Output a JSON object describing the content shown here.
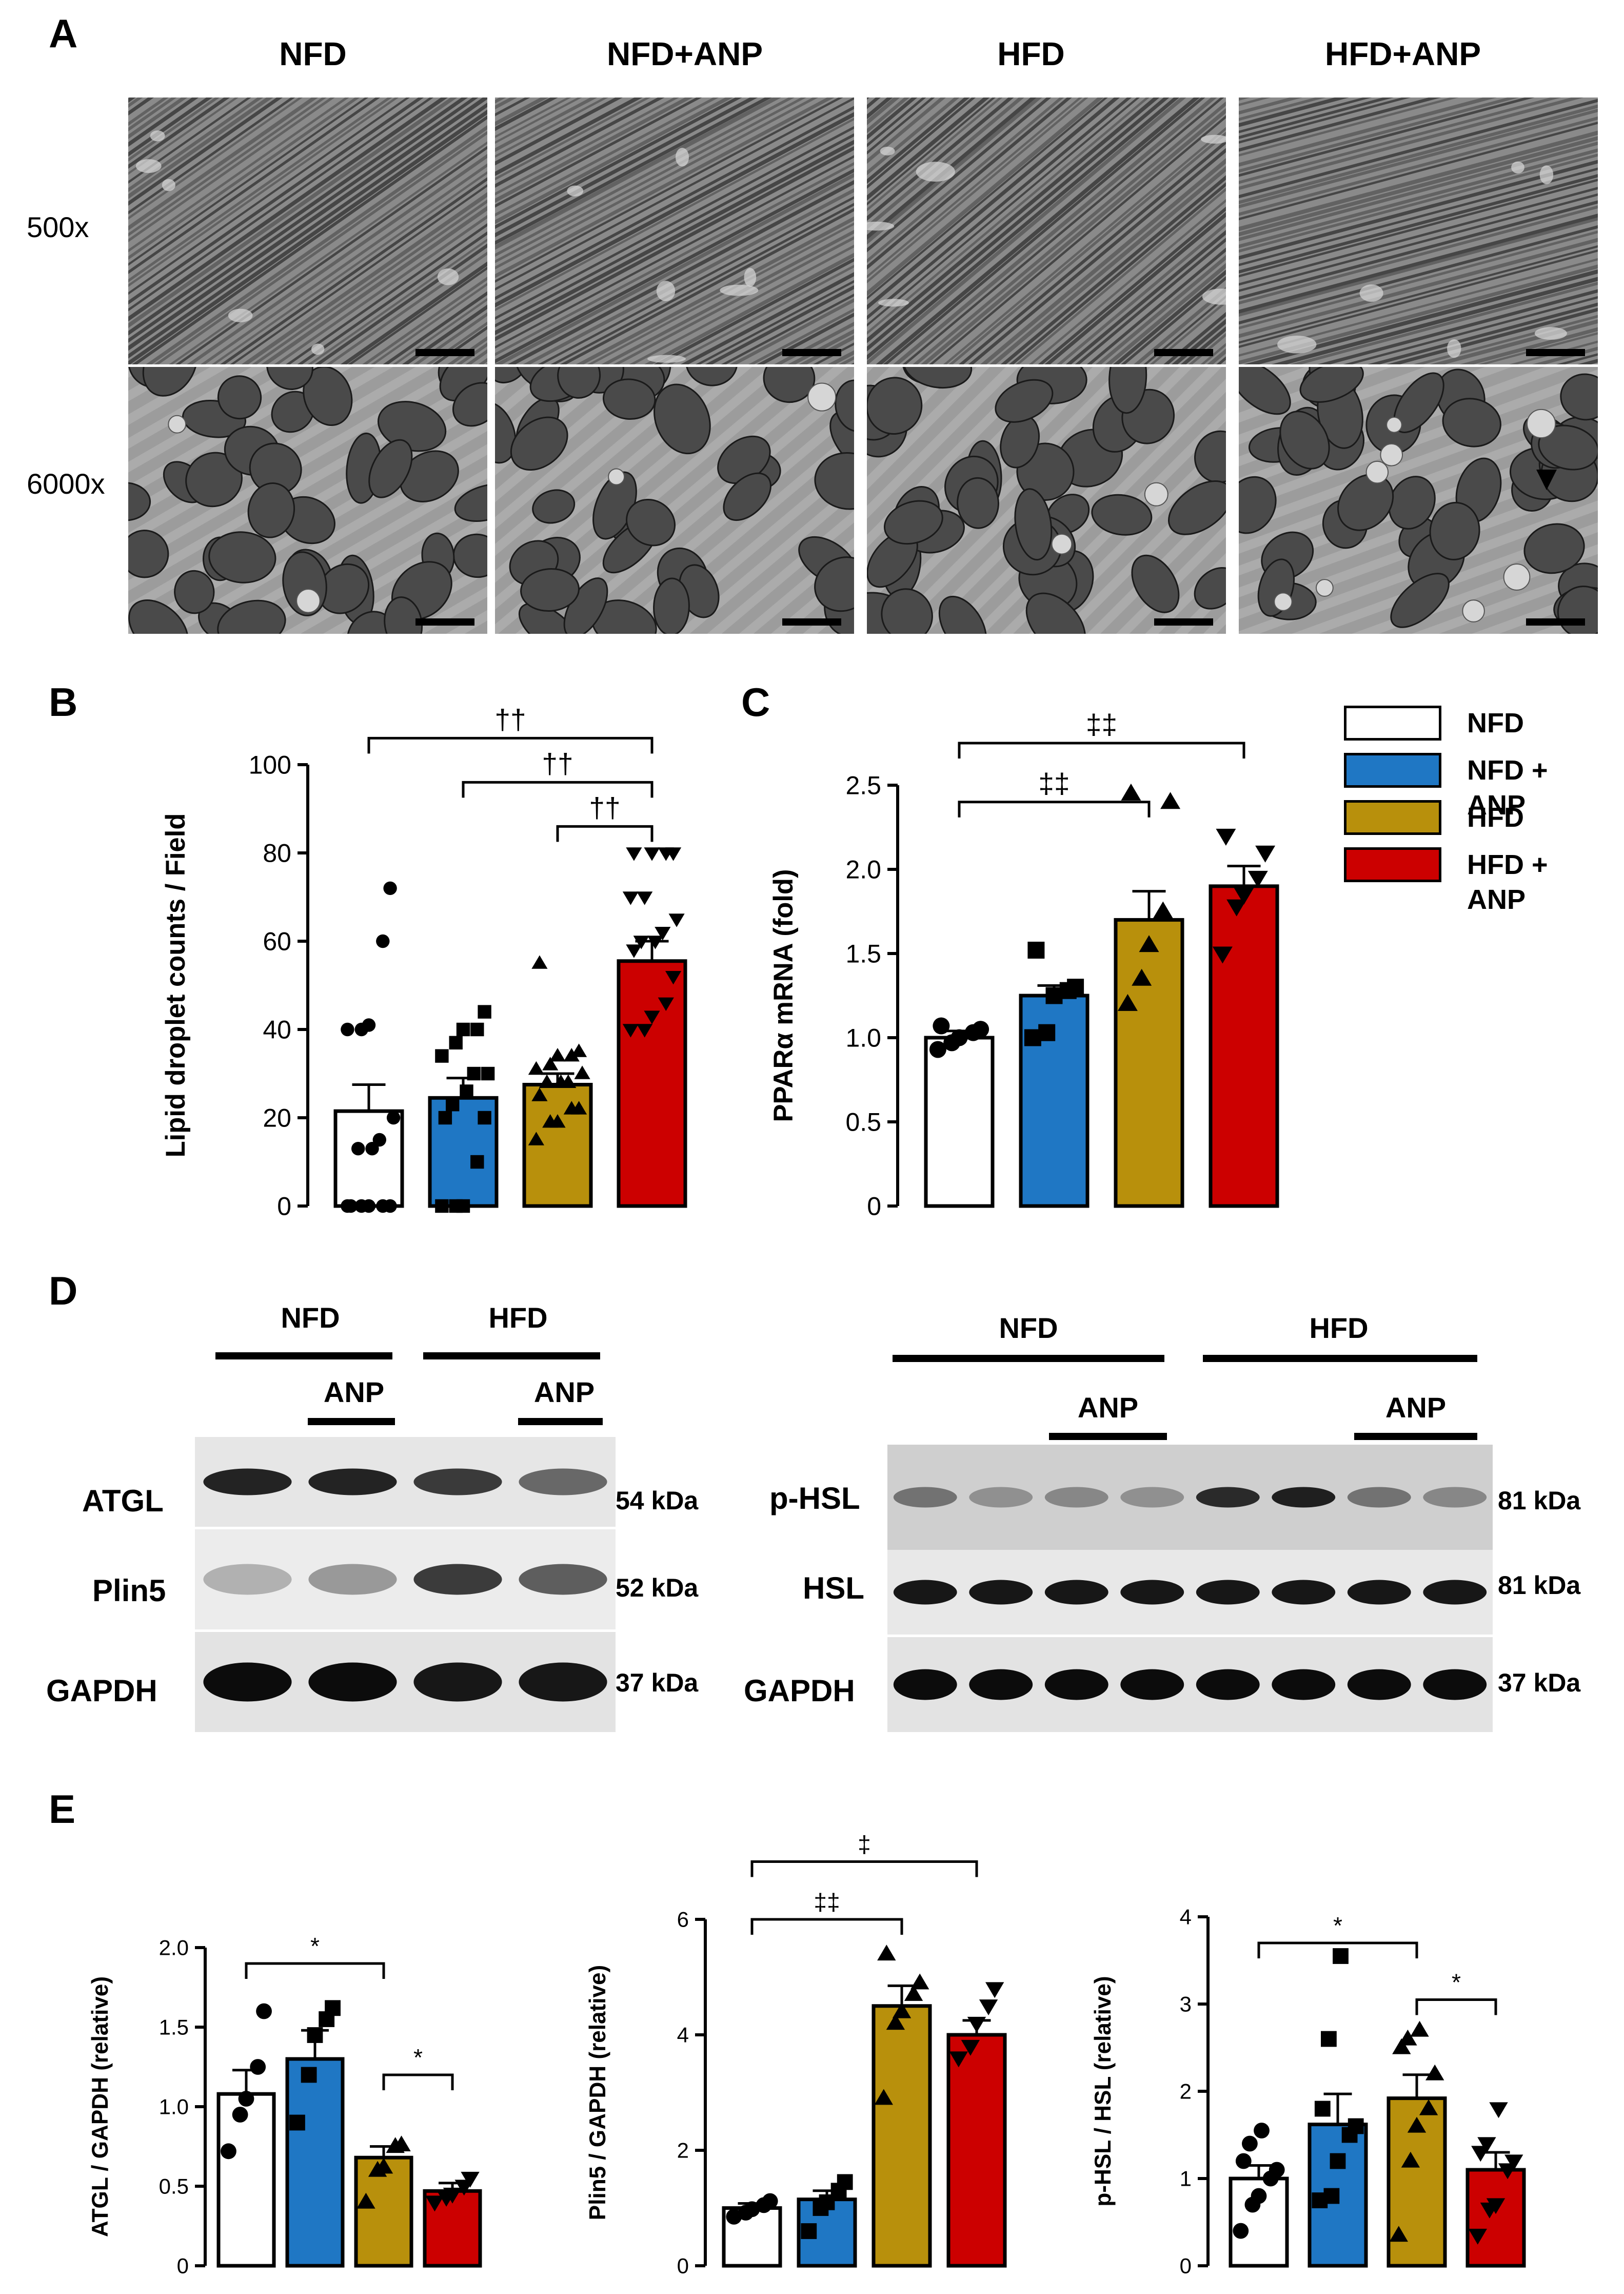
{
  "panelA": {
    "label": "A",
    "columns": [
      "NFD",
      "NFD+ANP",
      "HFD",
      "HFD+ANP"
    ],
    "rows": [
      "500x",
      "6000x"
    ]
  },
  "legend": {
    "items": [
      {
        "name": "NFD",
        "color": "#ffffff"
      },
      {
        "name": "NFD + ANP",
        "color": "#1f77c4"
      },
      {
        "name": "HFD",
        "color": "#b8900c"
      },
      {
        "name": "HFD + ANP",
        "color": "#cc0000"
      }
    ]
  },
  "panelD": {
    "label": "D",
    "left": {
      "groups": [
        "NFD",
        "HFD"
      ],
      "treatment": [
        "ANP",
        "ANP"
      ],
      "bands": [
        {
          "name": "ATGL",
          "kda": "54 kDa"
        },
        {
          "name": "Plin5",
          "kda": "52 kDa"
        },
        {
          "name": "GAPDH",
          "kda": "37 kDa"
        }
      ]
    },
    "right": {
      "groups": [
        "NFD",
        "HFD"
      ],
      "treatment": [
        "ANP",
        "ANP"
      ],
      "bands": [
        {
          "name": "p-HSL",
          "kda": "81 kDa"
        },
        {
          "name": "HSL",
          "kda": "81 kDa"
        },
        {
          "name": "GAPDH",
          "kda": "37 kDa"
        }
      ]
    }
  },
  "panelE": {
    "label": "E"
  },
  "chart_data": [
    {
      "id": "B",
      "label": "B",
      "type": "bar",
      "categories": [
        "NFD",
        "NFD + ANP",
        "HFD",
        "HFD + ANP"
      ],
      "values": [
        21.5,
        24.5,
        27.5,
        55.5
      ],
      "errors": [
        6,
        4.5,
        2.5,
        4.5
      ],
      "ylabel": "Lipid droplet counts / Field",
      "ylim": [
        0,
        100
      ],
      "yticks": [
        0,
        20,
        40,
        60,
        80,
        100
      ],
      "points": [
        [
          0,
          0,
          0,
          0,
          0,
          0,
          13,
          13,
          15,
          20,
          40,
          40,
          41,
          60,
          72
        ],
        [
          0,
          0,
          0,
          10,
          20,
          20,
          23,
          26,
          30,
          30,
          34,
          37,
          40,
          40,
          44
        ],
        [
          15,
          19,
          19,
          22,
          22,
          25,
          28,
          28,
          28,
          30,
          31,
          32,
          34,
          34,
          35,
          55
        ],
        [
          40,
          40,
          43,
          46,
          52,
          58,
          60,
          60,
          62,
          65,
          70,
          70,
          80,
          80,
          80,
          80
        ]
      ],
      "markers": [
        "circle",
        "square",
        "triangle-up",
        "triangle-down"
      ],
      "brackets": [
        {
          "from": 0,
          "to": 3,
          "y": 106,
          "text": "††"
        },
        {
          "from": 1,
          "to": 3,
          "y": 96,
          "text": "††"
        },
        {
          "from": 2,
          "to": 3,
          "y": 86,
          "text": "††"
        }
      ]
    },
    {
      "id": "C",
      "label": "C",
      "type": "bar",
      "categories": [
        "NFD",
        "NFD + ANP",
        "HFD",
        "HFD + ANP"
      ],
      "values": [
        1.0,
        1.25,
        1.7,
        1.9
      ],
      "errors": [
        0.04,
        0.06,
        0.17,
        0.12
      ],
      "ylabel": "PPARα mRNA (fold)",
      "ylim": [
        0,
        2.5
      ],
      "yticks": [
        0,
        0.5,
        1.0,
        1.5,
        2.0,
        2.5
      ],
      "yticklabels": [
        "0",
        "0.5",
        "1.0",
        "1.5",
        "2.0",
        "2.5"
      ],
      "points": [
        [
          0.93,
          0.97,
          1.0,
          1.03,
          1.05,
          1.07
        ],
        [
          1.0,
          1.03,
          1.25,
          1.28,
          1.3,
          1.52
        ],
        [
          1.2,
          1.35,
          1.55,
          1.75,
          2.4,
          2.45
        ],
        [
          1.5,
          1.78,
          1.85,
          1.95,
          2.1,
          2.2
        ]
      ],
      "markers": [
        "circle",
        "square",
        "triangle-up",
        "triangle-down"
      ],
      "brackets": [
        {
          "from": 0,
          "to": 2,
          "y": 2.4,
          "text": "‡‡"
        },
        {
          "from": 0,
          "to": 3,
          "y": 2.75,
          "text": "‡‡"
        }
      ]
    },
    {
      "id": "E1",
      "type": "bar",
      "categories": [
        "NFD",
        "NFD + ANP",
        "HFD",
        "HFD + ANP"
      ],
      "values": [
        1.08,
        1.3,
        0.68,
        0.47
      ],
      "errors": [
        0.15,
        0.18,
        0.07,
        0.05
      ],
      "ylabel": "ATGL / GAPDH (relative)",
      "ylim": [
        0,
        2.0
      ],
      "yticks": [
        0,
        0.5,
        1.0,
        1.5,
        2.0
      ],
      "yticklabels": [
        "0",
        "0.5",
        "1.0",
        "1.5",
        "2.0"
      ],
      "points": [
        [
          0.72,
          0.95,
          1.05,
          1.25,
          1.6
        ],
        [
          0.9,
          1.2,
          1.45,
          1.55,
          1.62
        ],
        [
          0.4,
          0.6,
          0.62,
          0.75,
          0.76
        ],
        [
          0.4,
          0.43,
          0.45,
          0.5,
          0.55
        ]
      ],
      "markers": [
        "circle",
        "square",
        "triangle-up",
        "triangle-down"
      ],
      "brackets": [
        {
          "from": 0,
          "to": 2,
          "y": 1.9,
          "text": "*"
        },
        {
          "from": 2,
          "to": 3,
          "y": 1.2,
          "text": "*"
        }
      ]
    },
    {
      "id": "E2",
      "type": "bar",
      "categories": [
        "NFD",
        "NFD + ANP",
        "HFD",
        "HFD + ANP"
      ],
      "values": [
        1.0,
        1.15,
        4.5,
        4.0
      ],
      "errors": [
        0.08,
        0.15,
        0.35,
        0.25
      ],
      "ylabel": "Plin5 / GAPDH (relative)",
      "ylim": [
        0,
        6
      ],
      "yticks": [
        0,
        2,
        4,
        6
      ],
      "points": [
        [
          0.85,
          0.92,
          0.98,
          1.05,
          1.12
        ],
        [
          0.6,
          1.0,
          1.1,
          1.3,
          1.45
        ],
        [
          2.9,
          4.2,
          4.4,
          4.7,
          4.9,
          5.4
        ],
        [
          3.6,
          3.8,
          4.2,
          4.5,
          4.8
        ]
      ],
      "markers": [
        "circle",
        "square",
        "triangle-up",
        "triangle-down"
      ],
      "brackets": [
        {
          "from": 0,
          "to": 2,
          "y": 6.0,
          "text": "‡‡"
        },
        {
          "from": 0,
          "to": 3,
          "y": 7.0,
          "text": "‡"
        }
      ]
    },
    {
      "id": "E3",
      "type": "bar",
      "categories": [
        "NFD",
        "NFD + ANP",
        "HFD",
        "HFD + ANP"
      ],
      "values": [
        1.0,
        1.62,
        1.92,
        1.1
      ],
      "errors": [
        0.15,
        0.35,
        0.27,
        0.2
      ],
      "ylabel": "p-HSL / HSL (relative)",
      "ylim": [
        0,
        4
      ],
      "yticks": [
        0,
        1,
        2,
        3,
        4
      ],
      "points": [
        [
          0.4,
          0.7,
          0.8,
          1.0,
          1.1,
          1.2,
          1.4,
          1.55
        ],
        [
          0.75,
          0.8,
          1.2,
          1.5,
          1.6,
          1.8,
          2.6,
          3.55
        ],
        [
          0.35,
          1.2,
          1.6,
          1.8,
          2.2,
          2.5,
          2.6,
          2.7
        ],
        [
          0.35,
          0.65,
          0.7,
          1.1,
          1.2,
          1.3,
          1.4,
          1.8
        ]
      ],
      "markers": [
        "circle",
        "square",
        "triangle-up",
        "triangle-down"
      ],
      "brackets": [
        {
          "from": 0,
          "to": 2,
          "y": 3.7,
          "text": "*"
        },
        {
          "from": 2,
          "to": 3,
          "y": 3.05,
          "text": "*"
        }
      ]
    }
  ]
}
